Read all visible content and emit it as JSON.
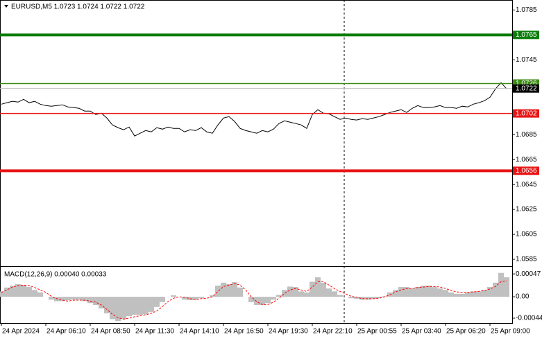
{
  "chart_data": [
    {
      "type": "line",
      "title": "EURUSD,M5  1.0723 1.0724 1.0722 1.0722",
      "ylim": [
        1.058,
        1.0793
      ],
      "yticks": [
        1.0785,
        1.0745,
        1.0685,
        1.0665,
        1.0645,
        1.0625,
        1.0605,
        1.0585
      ],
      "series": [
        {
          "name": "EURUSD",
          "color": "#000000",
          "values": [
            1.07094,
            1.07106,
            1.07117,
            1.07111,
            1.07133,
            1.07106,
            1.07117,
            1.07094,
            1.07083,
            1.07078,
            1.07083,
            1.07089,
            1.07072,
            1.07067,
            1.07061,
            1.07039,
            1.07039,
            1.07011,
            1.07022,
            1.06983,
            1.06928,
            1.06906,
            1.06889,
            1.06911,
            1.06839,
            1.06861,
            1.06883,
            1.06872,
            1.06906,
            1.06894,
            1.06911,
            1.069,
            1.069,
            1.06872,
            1.06889,
            1.06883,
            1.06906,
            1.06872,
            1.06861,
            1.06928,
            1.06983,
            1.06994,
            1.06956,
            1.069,
            1.06883,
            1.06872,
            1.06861,
            1.06883,
            1.06872,
            1.06894,
            1.06939,
            1.06961,
            1.0695,
            1.06939,
            1.06928,
            1.069,
            1.07011,
            1.0705,
            1.07022,
            1.07017,
            1.06994,
            1.06972,
            1.06983,
            1.06972,
            1.06967,
            1.06978,
            1.06972,
            1.06983,
            1.06994,
            1.07011,
            1.07028,
            1.07039,
            1.0705,
            1.07028,
            1.07061,
            1.07083,
            1.07067,
            1.07067,
            1.07072,
            1.07083,
            1.07067,
            1.07067,
            1.07061,
            1.07078,
            1.07072,
            1.07094,
            1.07106,
            1.07122,
            1.0715,
            1.07217,
            1.07267,
            1.07217
          ]
        }
      ],
      "levels": [
        {
          "value": 1.0765,
          "color": "#0a7d0a",
          "thick": true
        },
        {
          "value": 1.0726,
          "color": "#3c8c14",
          "thick": false
        },
        {
          "value": 1.0702,
          "color": "#e81414",
          "thick": false
        },
        {
          "value": 1.0656,
          "color": "#e81414",
          "thick": true
        }
      ],
      "last": {
        "value": 1.0722,
        "color": "#000000",
        "line_color": "#c0c0c0"
      }
    },
    {
      "type": "bar",
      "title": "MACD(12,26,9) 0.00040 0.00033",
      "ylim": [
        -0.00054,
        0.0006
      ],
      "yticks": [
        0.00047,
        {
          "value": 0,
          "label": "0.00"
        },
        -0.00044
      ],
      "categories": [
        "24 Apr 2024",
        null,
        null,
        null,
        null,
        null,
        null,
        null,
        "24 Apr 06:10",
        null,
        null,
        null,
        null,
        null,
        null,
        null,
        "24 Apr 08:50",
        null,
        null,
        null,
        null,
        null,
        null,
        null,
        "24 Apr 11:30",
        null,
        null,
        null,
        null,
        null,
        null,
        null,
        "24 Apr 14:10",
        null,
        null,
        null,
        null,
        null,
        null,
        null,
        "24 Apr 16:50",
        null,
        null,
        null,
        null,
        null,
        null,
        null,
        "24 Apr 19:30",
        null,
        null,
        null,
        null,
        null,
        null,
        null,
        "24 Apr 22:10",
        null,
        null,
        null,
        null,
        null,
        null,
        null,
        "25 Apr 00:55",
        null,
        null,
        null,
        null,
        null,
        null,
        null,
        "25 Apr 03:40",
        null,
        null,
        null,
        null,
        null,
        null,
        null,
        "25 Apr 06:20",
        null,
        null,
        null,
        null,
        null,
        null,
        null,
        "25 Apr 09:00",
        null,
        null,
        null
      ],
      "series": [
        {
          "name": "MACD",
          "color": "#c0c0c0",
          "values": [
            0.00011,
            0.00019,
            0.00023,
            0.00026,
            0.00024,
            0.0002,
            0.00014,
            9e-05,
            0,
            -6e-05,
            -9e-05,
            -9e-05,
            -7e-05,
            -6e-05,
            -6e-05,
            -9e-05,
            -0.00013,
            -0.00017,
            -0.00024,
            -0.00034,
            -0.00046,
            -0.0005,
            -0.00046,
            -0.0004,
            -0.00037,
            -0.00037,
            -0.00036,
            -0.00031,
            -0.00021,
            -0.00011,
            0,
            3e-05,
            0,
            -6e-05,
            -7e-05,
            -6e-05,
            -3e-05,
            0,
            3e-05,
            0.00023,
            0.00029,
            0.00026,
            0.0003,
            0.00019,
            0,
            -0.00011,
            -0.00017,
            -0.00017,
            -0.00013,
            -6e-05,
            4e-05,
            0.00014,
            0.00021,
            0.0002,
            0.00011,
            9e-05,
            0.00031,
            0.0004,
            0.00029,
            0.00017,
            0.00011,
            4e-05,
            0,
            -3e-05,
            -4e-05,
            -6e-05,
            -6e-05,
            -4e-05,
            -3e-05,
            1e-05,
            9e-05,
            0.00014,
            0.0002,
            0.0002,
            0.00017,
            0.0002,
            0.00023,
            0.00023,
            0.0002,
            0.00017,
            0.00014,
            9e-05,
            6e-05,
            6e-05,
            9e-05,
            0.00011,
            0.00011,
            0.00014,
            0.0002,
            0.00029,
            0.00049,
            0.0004
          ]
        },
        {
          "name": "Signal",
          "color": "#ff0000",
          "values": [
            9e-05,
            0.00014,
            0.0002,
            0.00023,
            0.00024,
            0.00023,
            0.00019,
            0.00014,
            9e-05,
            1e-05,
            -4e-05,
            -7e-05,
            -9e-05,
            -7e-05,
            -7e-05,
            -7e-05,
            -9e-05,
            -0.00011,
            -0.00017,
            -0.00026,
            -0.00036,
            -0.00043,
            -0.00046,
            -0.00044,
            -0.00041,
            -0.00039,
            -0.00037,
            -0.00034,
            -0.00029,
            -0.0002,
            -0.0001,
            -3e-05,
            0,
            -1e-05,
            -4e-05,
            -6e-05,
            -4e-05,
            -3e-05,
            0,
            0.00011,
            0.00021,
            0.00024,
            0.00027,
            0.00024,
            0.00014,
            0,
            -0.0001,
            -0.00016,
            -0.00016,
            -0.00011,
            -3e-05,
            7e-05,
            0.00014,
            0.00017,
            0.00014,
            0.00011,
            0.0002,
            0.00031,
            0.00031,
            0.00024,
            0.00017,
            0.00011,
            6e-05,
            1e-05,
            -1e-05,
            -4e-05,
            -4e-05,
            -4e-05,
            -3e-05,
            0,
            4e-05,
            0.0001,
            0.00014,
            0.00017,
            0.00017,
            0.00019,
            0.0002,
            0.00021,
            0.00021,
            0.0002,
            0.00017,
            0.00013,
            0.0001,
            9e-05,
            9e-05,
            0.0001,
            0.00011,
            0.00013,
            0.00016,
            0.00021,
            0.00031,
            0.00033
          ]
        }
      ]
    }
  ]
}
